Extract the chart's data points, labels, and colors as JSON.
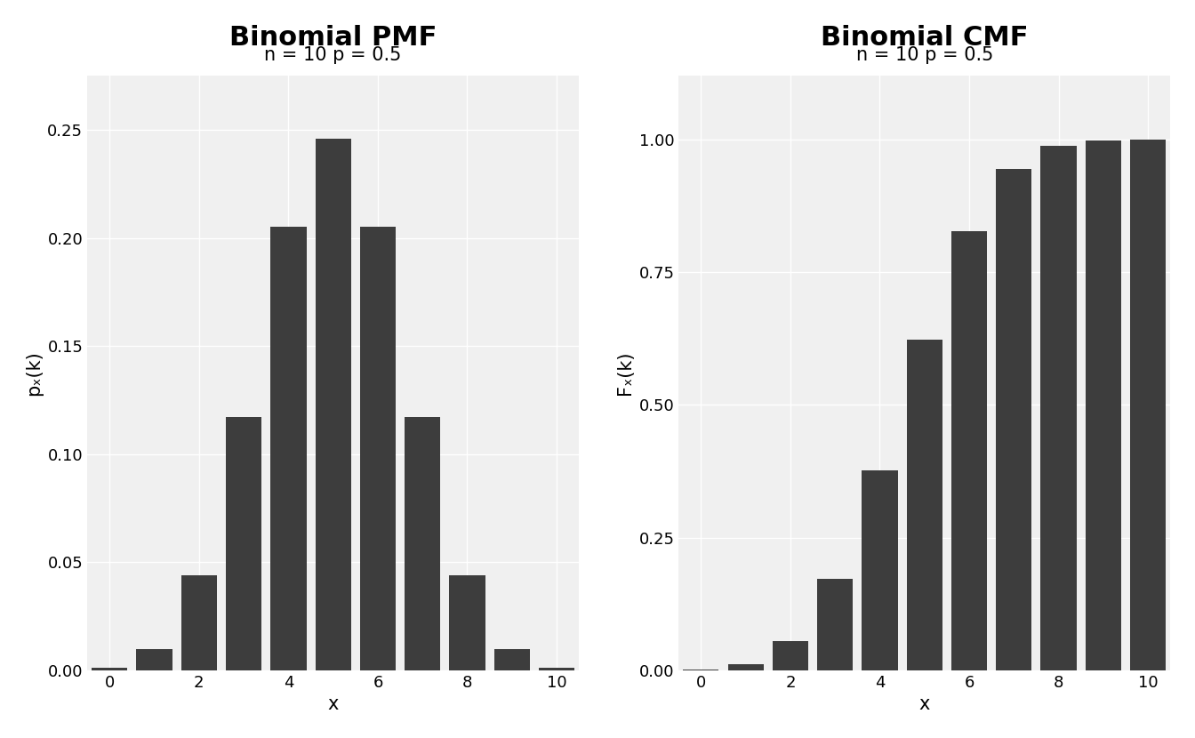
{
  "n": 10,
  "p": 0.5,
  "k_values": [
    0,
    1,
    2,
    3,
    4,
    5,
    6,
    7,
    8,
    9,
    10
  ],
  "pmf_values": [
    0.000977,
    0.009766,
    0.043945,
    0.117188,
    0.205078,
    0.246094,
    0.205078,
    0.117188,
    0.043945,
    0.009766,
    0.000977
  ],
  "cmf_values": [
    0.000977,
    0.010742,
    0.054688,
    0.171875,
    0.376953,
    0.623047,
    0.828125,
    0.945313,
    0.989258,
    0.999023,
    1.0
  ],
  "bar_color": "#3d3d3d",
  "bar_edgecolor": "#3d3d3d",
  "background_color": "#ffffff",
  "panel_background": "#f0f0f0",
  "grid_color": "#ffffff",
  "title_pmf": "Binomial PMF",
  "title_cmf": "Binomial CMF",
  "subtitle": "n = 10 p = 0.5",
  "xlabel": "x",
  "ylabel_pmf": "pₓ(k)",
  "ylabel_cmf": "Fₓ(k)",
  "xlim": [
    -0.5,
    10.5
  ],
  "ylim_pmf": [
    0.0,
    0.275
  ],
  "ylim_cmf": [
    0.0,
    1.12
  ],
  "yticks_pmf": [
    0.0,
    0.05,
    0.1,
    0.15,
    0.2,
    0.25
  ],
  "yticks_cmf": [
    0.0,
    0.25,
    0.5,
    0.75,
    1.0
  ],
  "xticks": [
    0,
    2,
    4,
    6,
    8,
    10
  ],
  "title_fontsize": 22,
  "subtitle_fontsize": 15,
  "label_fontsize": 15,
  "tick_fontsize": 13,
  "bar_width": 0.8,
  "grid_linewidth": 1.0
}
